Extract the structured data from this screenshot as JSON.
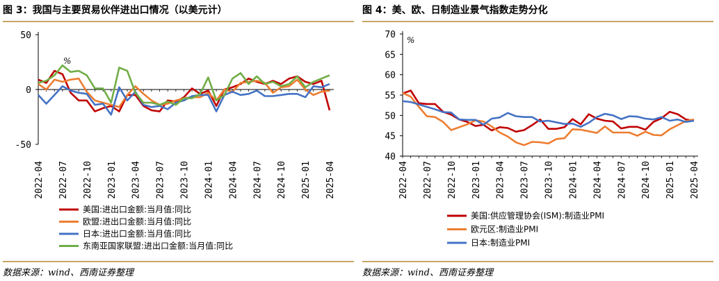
{
  "colors": {
    "us": "#c00000",
    "eu": "#ed7d31",
    "jp": "#4472c4",
    "asean": "#70ad47",
    "rule": "#c8a464"
  },
  "left": {
    "title": "图 3：我国与主要贸易伙伴进出口情况（以美元计）",
    "source": "数据来源：wind、西南证券整理",
    "chart_data": {
      "type": "line",
      "title": "我国与主要贸易伙伴进出口情况（以美元计）",
      "unit_label": "%",
      "ylim": [
        -50,
        50
      ],
      "yticks": [
        "50",
        "0",
        "-50"
      ],
      "xtick_labels": [
        "2022-04",
        "2022-07",
        "2022-10",
        "2023-01",
        "2023-04",
        "2023-07",
        "2023-10",
        "2024-01",
        "2024-04",
        "2024-07",
        "2024-10",
        "2025-01",
        "2025-04"
      ],
      "x": [
        "2022-04",
        "2022-05",
        "2022-06",
        "2022-07",
        "2022-08",
        "2022-09",
        "2022-10",
        "2022-11",
        "2022-12",
        "2023-01",
        "2023-02",
        "2023-03",
        "2023-04",
        "2023-05",
        "2023-06",
        "2023-07",
        "2023-08",
        "2023-09",
        "2023-10",
        "2023-11",
        "2023-12",
        "2024-01",
        "2024-02",
        "2024-03",
        "2024-04",
        "2024-05",
        "2024-06",
        "2024-07",
        "2024-08",
        "2024-09",
        "2024-10",
        "2024-11",
        "2024-12",
        "2025-01",
        "2025-02",
        "2025-03",
        "2025-04"
      ],
      "series": [
        {
          "key": "us",
          "name": "美国:进出口金额:当月值:同比",
          "values": [
            9,
            6,
            17,
            14,
            -3,
            -10,
            -10,
            -20,
            -17,
            -15,
            -20,
            -5,
            -5,
            -15,
            -19,
            -20,
            -10,
            -11,
            -7,
            1,
            -4,
            -1,
            -15,
            0,
            2,
            5,
            10,
            7,
            5,
            8,
            5,
            10,
            12,
            7,
            5,
            8,
            -19
          ]
        },
        {
          "key": "eu",
          "name": "欧盟:进出口金额:当月值:同比",
          "values": [
            5,
            0,
            9,
            7,
            9,
            10,
            -2,
            -10,
            -12,
            -14,
            -16,
            -5,
            3,
            -4,
            -10,
            -14,
            -13,
            -10,
            -8,
            -7,
            -7,
            -3,
            -10,
            0,
            -2,
            6,
            7,
            8,
            6,
            -3,
            2,
            3,
            9,
            0,
            -5,
            -2,
            -1
          ]
        },
        {
          "key": "jp",
          "name": "日本:进出口金额:当月值:同比",
          "values": [
            -5,
            -13,
            -5,
            3,
            -1,
            -3,
            -4,
            -14,
            -13,
            -23,
            2,
            -10,
            -2,
            -14,
            -16,
            -15,
            -18,
            -12,
            -10,
            -6,
            -5,
            -5,
            -20,
            -5,
            -2,
            -5,
            -4,
            -1,
            -6,
            -6,
            -5,
            -4,
            -4,
            -7,
            3,
            2,
            5
          ]
        },
        {
          "key": "asean",
          "name": "东南亚国家联盟:进出口金额:当月值:同比",
          "values": [
            6,
            8,
            13,
            22,
            16,
            17,
            13,
            1,
            1,
            -12,
            20,
            17,
            -3,
            -12,
            -12,
            -14,
            -11,
            -14,
            -8,
            -8,
            -4,
            11,
            -10,
            -5,
            10,
            15,
            5,
            12,
            5,
            7,
            3,
            5,
            12,
            2,
            7,
            10,
            13
          ]
        }
      ]
    }
  },
  "right": {
    "title": "图 4：美、欧、日制造业景气指数走势分化",
    "source": "数据来源：wind、西南证券整理",
    "chart_data": {
      "type": "line",
      "title": "美、欧、日制造业景气指数走势分化",
      "unit_label": "%",
      "ylim": [
        40,
        70
      ],
      "yticks": [
        "70",
        "65",
        "60",
        "55",
        "50",
        "45",
        "40"
      ],
      "xtick_labels": [
        "2022-04",
        "2022-07",
        "2022-10",
        "2023-01",
        "2023-04",
        "2023-07",
        "2023-10",
        "2024-01",
        "2024-04",
        "2024-07",
        "2024-10",
        "2025-01",
        "2025-04"
      ],
      "x": [
        "2022-04",
        "2022-05",
        "2022-06",
        "2022-07",
        "2022-08",
        "2022-09",
        "2022-10",
        "2022-11",
        "2022-12",
        "2023-01",
        "2023-02",
        "2023-03",
        "2023-04",
        "2023-05",
        "2023-06",
        "2023-07",
        "2023-08",
        "2023-09",
        "2023-10",
        "2023-11",
        "2023-12",
        "2024-01",
        "2024-02",
        "2024-03",
        "2024-04",
        "2024-05",
        "2024-06",
        "2024-07",
        "2024-08",
        "2024-09",
        "2024-10",
        "2024-11",
        "2024-12",
        "2025-01",
        "2025-02",
        "2025-03",
        "2025-04"
      ],
      "series": [
        {
          "key": "us",
          "name": "美国:供应管理协会(ISM):制造业PMI",
          "values": [
            55.4,
            56.1,
            53.0,
            52.8,
            52.8,
            50.9,
            50.2,
            49.0,
            48.4,
            47.4,
            47.7,
            46.3,
            47.1,
            46.9,
            46.0,
            46.4,
            47.6,
            49.0,
            46.7,
            46.7,
            47.1,
            49.1,
            47.8,
            50.3,
            49.2,
            48.7,
            48.5,
            46.8,
            47.2,
            47.2,
            46.5,
            48.4,
            49.3,
            50.9,
            50.3,
            49.0,
            48.7
          ]
        },
        {
          "key": "eu",
          "name": "欧元区:制造业PMI",
          "values": [
            55.5,
            54.6,
            52.1,
            49.8,
            49.6,
            48.4,
            46.4,
            47.1,
            47.8,
            48.8,
            48.5,
            47.3,
            45.8,
            44.8,
            43.4,
            42.7,
            43.5,
            43.4,
            43.1,
            44.2,
            44.4,
            46.6,
            46.5,
            46.1,
            45.7,
            47.3,
            45.8,
            45.8,
            45.8,
            45.0,
            46.0,
            45.2,
            45.1,
            46.6,
            47.6,
            48.6,
            49.0
          ]
        },
        {
          "key": "jp",
          "name": "日本:制造业PMI",
          "values": [
            53.5,
            53.3,
            52.7,
            52.1,
            51.5,
            50.8,
            50.7,
            49.0,
            48.9,
            48.9,
            47.7,
            49.2,
            49.5,
            50.6,
            49.8,
            49.6,
            49.6,
            48.5,
            48.7,
            48.3,
            47.9,
            48.0,
            47.2,
            48.2,
            49.6,
            50.4,
            50.0,
            49.1,
            49.8,
            49.7,
            49.2,
            49.0,
            49.6,
            48.7,
            49.0,
            48.4,
            48.7
          ]
        }
      ]
    }
  }
}
